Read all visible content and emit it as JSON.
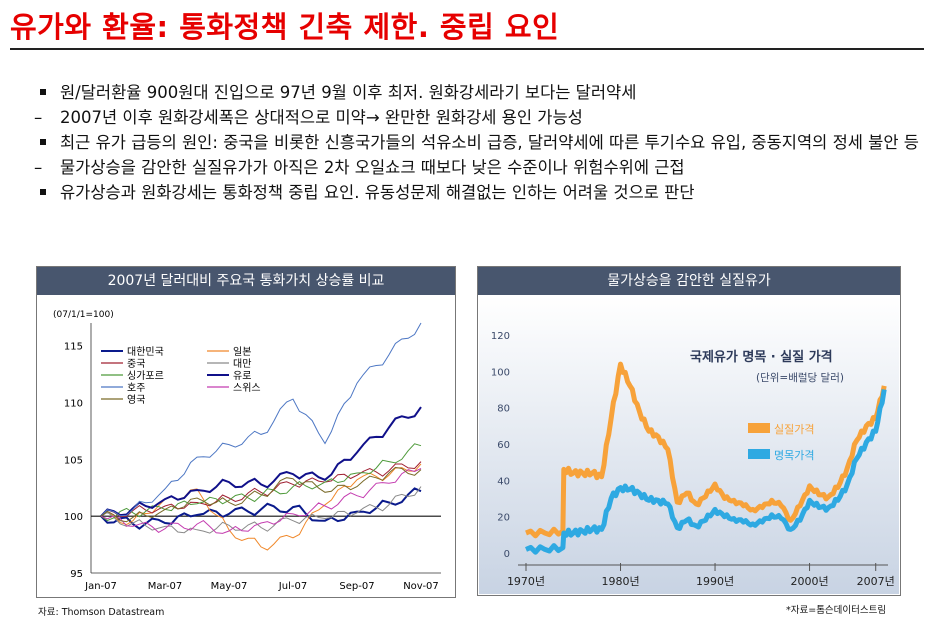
{
  "title": "유가와 환율: 통화정책 긴축 제한. 중립 요인",
  "bullets": [
    {
      "kind": "square",
      "text": "원/달러환율 900원대 진입으로 97년 9월 이후 최저. 원화강세라기 보다는 달러약세"
    },
    {
      "kind": "dash",
      "text": "2007년 이후 원화강세폭은 상대적으로 미약→ 완만한 원화강세 용인 가능성"
    },
    {
      "kind": "square",
      "text": "최근 유가 급등의 원인: 중국을 비롯한 신흥국가들의 석유소비 급증, 달러약세에 따른 투기수요 유입, 중동지역의 정세 불안 등"
    },
    {
      "kind": "dash",
      "text": "물가상승을 감안한 실질유가가 아직은 2차 오일쇼크 때보다 낮은 수준이나 위험수위에 근접"
    },
    {
      "kind": "square",
      "text": "유가상승과 원화강세는 통화정책 중립 요인. 유동성문제 해결없는 인하는 어려울 것으로 판단"
    }
  ],
  "left_panel": {
    "header": "2007년 달러대비 주요국 통화가치 상승률 비교",
    "source": "자료: Thomson Datastream"
  },
  "right_panel": {
    "header": "물가상승을 감안한 실질유가",
    "source": "*자료=톰슨데이터스트림"
  },
  "colors": {
    "title": "#e60000",
    "header_bg": "#48566e",
    "real_price": "#f7a23a",
    "nominal_price": "#2ea9e2"
  },
  "chart_data": [
    {
      "type": "line",
      "title": "2007년 달러대비 주요국 통화가치 상승률 비교",
      "index_note": "(07/1/1=100)",
      "x_tick_labels": [
        "Jan-07",
        "Mar-07",
        "May-07",
        "Jul-07",
        "Sep-07",
        "Nov-07"
      ],
      "x": [
        "Jan",
        "Feb",
        "Mar",
        "Apr",
        "May",
        "Jun",
        "Jul",
        "Aug",
        "Sep",
        "Oct",
        "Nov"
      ],
      "ylim": [
        95,
        117
      ],
      "y_ticks": [
        95,
        100,
        105,
        110,
        115
      ],
      "series": [
        {
          "name": "대한민국",
          "color": "#0a1a8c",
          "values": [
            100,
            99.3,
            99.4,
            100.1,
            100.2,
            100.6,
            100.8,
            99.6,
            100.4,
            101.2,
            102.2
          ]
        },
        {
          "name": "일본",
          "color": "#f0882a",
          "values": [
            100,
            99.6,
            101.5,
            102.4,
            98.8,
            97.3,
            98.1,
            101.0,
            103.2,
            103.6,
            104.6
          ]
        },
        {
          "name": "중국",
          "color": "#a02032",
          "values": [
            100,
            100.5,
            100.9,
            101.2,
            101.6,
            102.1,
            102.8,
            103.0,
            103.6,
            104.0,
            104.8
          ]
        },
        {
          "name": "대만",
          "color": "#8a8a8a",
          "values": [
            100,
            99.4,
            99.1,
            98.8,
            99.2,
            99.0,
            99.6,
            99.8,
            100.3,
            101.0,
            102.6
          ]
        },
        {
          "name": "싱가포르",
          "color": "#4e9a3a",
          "values": [
            100,
            100.3,
            100.6,
            101.1,
            101.4,
            101.8,
            102.6,
            103.0,
            103.8,
            104.8,
            106.2
          ]
        },
        {
          "name": "유로",
          "color": "#10108a",
          "values": [
            100,
            100.7,
            101.5,
            102.3,
            103.0,
            102.8,
            103.7,
            103.2,
            105.6,
            107.8,
            109.6
          ]
        },
        {
          "name": "호주",
          "color": "#4d77c4",
          "values": [
            100,
            100.6,
            102.4,
            105.2,
            106.3,
            107.2,
            110.3,
            106.4,
            111.7,
            114.2,
            117.0
          ]
        },
        {
          "name": "스위스",
          "color": "#c43cb0",
          "values": [
            100,
            99.1,
            98.9,
            99.3,
            98.7,
            99.4,
            100.2,
            100.9,
            101.8,
            102.9,
            104.2
          ]
        },
        {
          "name": "영국",
          "color": "#7a6a28",
          "values": [
            100,
            99.9,
            100.6,
            101.6,
            101.2,
            101.9,
            103.3,
            102.1,
            102.6,
            103.8,
            104.1
          ]
        }
      ]
    },
    {
      "type": "line",
      "title": "국제유가 명목 · 실질 가격",
      "subtitle": "(단위=배럴당 달러)",
      "x_tick_labels": [
        "1970년",
        "1980년",
        "1990년",
        "2000년",
        "2007년"
      ],
      "ylim": [
        0,
        120
      ],
      "y_ticks": [
        0,
        20,
        40,
        60,
        80,
        100,
        120
      ],
      "x": [
        1970,
        1972,
        1973.9,
        1974,
        1975,
        1976,
        1977,
        1978,
        1979,
        1980,
        1981,
        1982,
        1983,
        1984,
        1985,
        1986,
        1987,
        1988,
        1989,
        1990,
        1991,
        1992,
        1993,
        1994,
        1995,
        1996,
        1997,
        1998,
        1999,
        2000,
        2001,
        2002,
        2003,
        2004,
        2005,
        2006,
        2007,
        2007.9
      ],
      "series": [
        {
          "name": "실질가격",
          "color": "#f7a23a",
          "values": [
            11,
            11,
            12,
            46,
            44,
            44,
            44,
            42,
            74,
            104,
            92,
            78,
            67,
            64,
            57,
            28,
            33,
            27,
            31,
            38,
            30,
            29,
            26,
            24,
            25,
            29,
            26,
            18,
            26,
            37,
            32,
            31,
            36,
            47,
            62,
            70,
            74,
            92
          ]
        },
        {
          "name": "명목가격",
          "color": "#2ea9e2",
          "values": [
            2,
            2,
            3,
            11,
            11,
            12,
            13,
            13,
            30,
            36,
            35,
            33,
            29,
            29,
            27,
            14,
            18,
            15,
            18,
            24,
            20,
            19,
            17,
            16,
            17,
            21,
            19,
            13,
            18,
            29,
            25,
            25,
            29,
            38,
            52,
            61,
            67,
            90
          ]
        }
      ]
    }
  ]
}
